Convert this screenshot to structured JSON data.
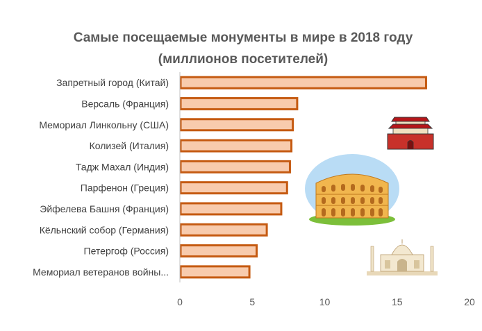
{
  "chart_data": {
    "type": "bar",
    "orientation": "horizontal",
    "title": "Самые посещаемые монументы в мире в 2018 году",
    "subtitle": "(миллионов посетителей)",
    "categories": [
      "Запретный город (Китай)",
      "Версаль (Франция)",
      "Мемориал Линкольну (США)",
      "Колизей (Италия)",
      "Тадж Махал (Индия)",
      "Парфенон (Греция)",
      "Эйфелева Башня (Франция)",
      "Кёльнский собор (Германия)",
      "Петергоф (Россия)",
      "Мемориал ветеранов войны..."
    ],
    "values": [
      17.0,
      8.1,
      7.8,
      7.7,
      7.6,
      7.4,
      7.0,
      6.0,
      5.3,
      4.8
    ],
    "xlim": [
      0,
      20
    ],
    "xticks": [
      0,
      5,
      10,
      15,
      20
    ],
    "grid": false,
    "colors": {
      "bar_fill": "#f8cbad",
      "bar_stroke": "#c55a11",
      "title": "#595959",
      "text": "#404040",
      "axis": "#bfbfbf"
    },
    "decorations": [
      "forbidden-city-icon",
      "colosseum-icon",
      "taj-mahal-icon"
    ]
  }
}
